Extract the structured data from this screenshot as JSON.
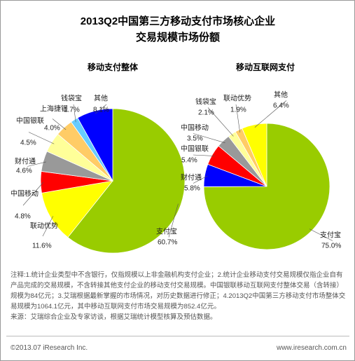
{
  "title": [
    "2013Q2中国第三方移动支付市场核心企业",
    "交易规模市场份额"
  ],
  "chart_data": [
    {
      "type": "pie",
      "title": "移动支付整体",
      "categories": [
        "支付宝",
        "联动优势",
        "中国移动",
        "财付通",
        "中国银联",
        "上海捷银",
        "钱袋宝",
        "其他"
      ],
      "values": [
        60.7,
        11.6,
        4.8,
        4.6,
        4.5,
        4.0,
        1.7,
        8.1
      ],
      "value_labels": [
        "60.7%",
        "11.6%",
        "4.8%",
        "4.6%",
        "4.5%",
        "4.0%",
        "1.7%",
        "8.1%"
      ],
      "colors": [
        "#99cc00",
        "#ffff00",
        "#ff0000",
        "#999999",
        "#ffff99",
        "#ffcc66",
        "#66ccff",
        "#0000ff"
      ]
    },
    {
      "type": "pie",
      "title": "移动互联网支付",
      "categories": [
        "支付宝",
        "财付通",
        "中国银联",
        "中国移动",
        "钱袋宝",
        "联动优势",
        "其他"
      ],
      "values": [
        75.0,
        5.8,
        5.4,
        3.5,
        2.1,
        1.9,
        6.4
      ],
      "value_labels": [
        "75.0%",
        "5.8%",
        "5.4%",
        "3.5%",
        "2.1%",
        "1.9%",
        "6.4%"
      ],
      "colors": [
        "#99cc00",
        "#0000ff",
        "#ff0000",
        "#999999",
        "#ffff99",
        "#ffcc66",
        "#ffff00"
      ]
    }
  ],
  "notes": [
    "注释:1.统计企业类型中不含银行，仅指规模以上非金融机构支付企业；2.统计企业移动支付交易规模仅指企业自有产品完成的交易规模，不含转接其他支付企业的移动支付交易规模。中国银联移动互联网支付整体交易（含转接）规模为84亿元；3.艾瑞根据最新掌握的市场情况，对历史数据进行修正；4.2013Q2中国第三方移动支付市场整体交易规模为1064.1亿元，其中移动互联网支付市场交易规模为852.4亿元。",
    "来源：艾瑞综合企业及专家访谈，根据艾瑞统计模型核算及预估数据。"
  ],
  "footer": {
    "left": "©2013.07 iResearch Inc.",
    "right": "www.iresearch.com.cn"
  }
}
